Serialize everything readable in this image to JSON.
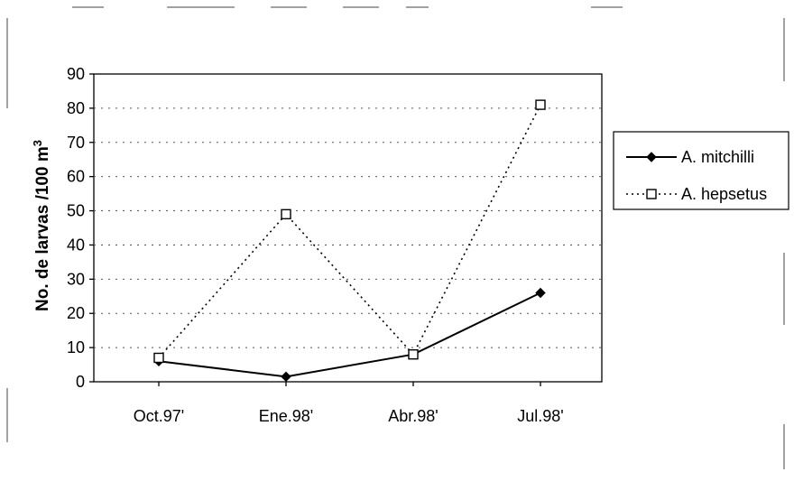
{
  "chart_data": {
    "type": "line",
    "ylabel_main": "No. de larvas /100 m",
    "ylabel_sup": "3",
    "xlabel": "",
    "categories": [
      "Oct.97'",
      "Ene.98'",
      "Abr.98'",
      "Jul.98'"
    ],
    "ylim": [
      0,
      90
    ],
    "yticks": [
      0,
      10,
      20,
      30,
      40,
      50,
      60,
      70,
      80,
      90
    ],
    "grid": true,
    "legend_position": "right",
    "series": [
      {
        "name": "A. mitchilli",
        "values": [
          6,
          1.5,
          8,
          26
        ],
        "style": "solid",
        "marker": "diamond",
        "color": "#000000"
      },
      {
        "name": "A. hepsetus",
        "values": [
          7,
          49,
          8,
          81
        ],
        "style": "dotted",
        "marker": "square-open",
        "color": "#000000"
      }
    ]
  }
}
